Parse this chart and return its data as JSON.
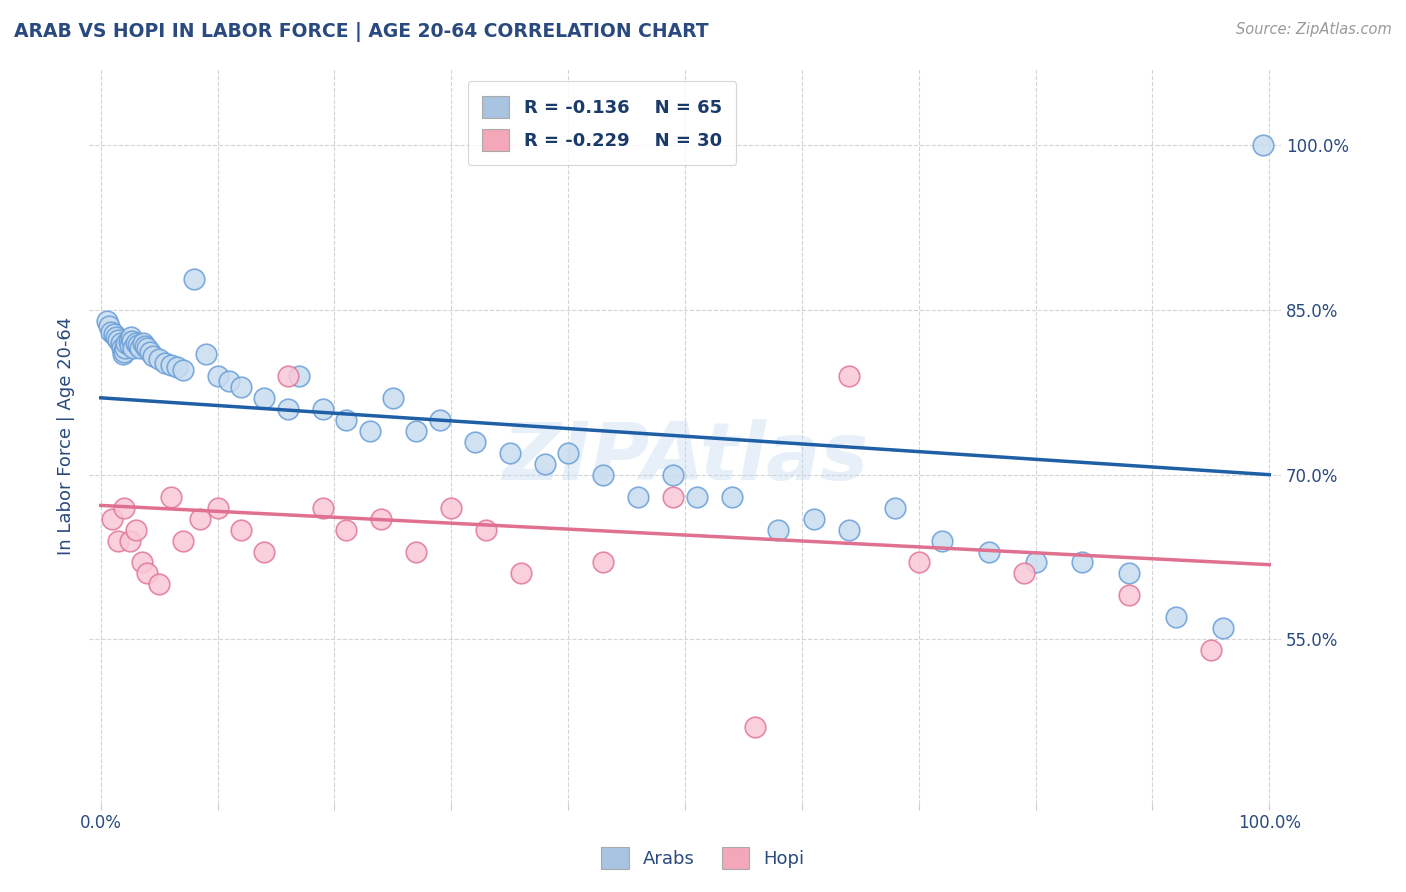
{
  "title": "ARAB VS HOPI IN LABOR FORCE | AGE 20-64 CORRELATION CHART",
  "source_text": "Source: ZipAtlas.com",
  "ylabel": "In Labor Force | Age 20-64",
  "xlim": [
    -0.01,
    1.01
  ],
  "ylim": [
    0.4,
    1.07
  ],
  "x_ticks": [
    0.0,
    0.1,
    0.2,
    0.3,
    0.4,
    0.5,
    0.6,
    0.7,
    0.8,
    0.9,
    1.0
  ],
  "x_tick_labels": [
    "0.0%",
    "",
    "",
    "",
    "",
    "",
    "",
    "",
    "",
    "",
    "100.0%"
  ],
  "y_ticks_right": [
    0.55,
    0.7,
    0.85,
    1.0
  ],
  "y_tick_labels_right": [
    "55.0%",
    "70.0%",
    "85.0%",
    "100.0%"
  ],
  "arab_R": -0.136,
  "arab_N": 65,
  "hopi_R": -0.229,
  "hopi_N": 30,
  "arab_fill_color": "#c8dcf0",
  "arab_edge_color": "#6a9fd8",
  "hopi_fill_color": "#fac8d8",
  "hopi_edge_color": "#e07898",
  "arab_legend_color": "#a8c4e0",
  "hopi_legend_color": "#f4a7b9",
  "arab_line_color": "#1f5fa6",
  "hopi_line_color": "#e07090",
  "background_color": "#ffffff",
  "grid_color": "#d4d4d4",
  "title_color": "#2a4a7f",
  "axis_label_color": "#2a4a7f",
  "legend_text_color": "#1a3a6a",
  "watermark": "ZIPAtlas",
  "arab_scatter_x": [
    0.005,
    0.007,
    0.009,
    0.011,
    0.013,
    0.015,
    0.017,
    0.018,
    0.019,
    0.02,
    0.021,
    0.022,
    0.024,
    0.025,
    0.026,
    0.027,
    0.028,
    0.03,
    0.032,
    0.034,
    0.036,
    0.038,
    0.04,
    0.042,
    0.045,
    0.05,
    0.055,
    0.06,
    0.065,
    0.07,
    0.08,
    0.09,
    0.1,
    0.11,
    0.12,
    0.14,
    0.16,
    0.17,
    0.19,
    0.21,
    0.23,
    0.25,
    0.27,
    0.29,
    0.32,
    0.35,
    0.38,
    0.4,
    0.43,
    0.46,
    0.49,
    0.51,
    0.54,
    0.58,
    0.61,
    0.64,
    0.68,
    0.72,
    0.76,
    0.8,
    0.84,
    0.88,
    0.92,
    0.96,
    0.995
  ],
  "arab_scatter_y": [
    0.84,
    0.835,
    0.83,
    0.828,
    0.825,
    0.823,
    0.82,
    0.815,
    0.81,
    0.812,
    0.815,
    0.82,
    0.822,
    0.818,
    0.825,
    0.822,
    0.815,
    0.82,
    0.818,
    0.815,
    0.82,
    0.817,
    0.815,
    0.812,
    0.808,
    0.805,
    0.802,
    0.8,
    0.798,
    0.795,
    0.878,
    0.81,
    0.79,
    0.785,
    0.78,
    0.77,
    0.76,
    0.79,
    0.76,
    0.75,
    0.74,
    0.77,
    0.74,
    0.75,
    0.73,
    0.72,
    0.71,
    0.72,
    0.7,
    0.68,
    0.7,
    0.68,
    0.68,
    0.65,
    0.66,
    0.65,
    0.67,
    0.64,
    0.63,
    0.62,
    0.62,
    0.61,
    0.57,
    0.56,
    1.0
  ],
  "hopi_scatter_x": [
    0.01,
    0.015,
    0.02,
    0.025,
    0.03,
    0.035,
    0.04,
    0.05,
    0.06,
    0.07,
    0.085,
    0.1,
    0.12,
    0.14,
    0.16,
    0.19,
    0.21,
    0.24,
    0.27,
    0.3,
    0.33,
    0.36,
    0.43,
    0.49,
    0.56,
    0.64,
    0.7,
    0.79,
    0.88,
    0.95
  ],
  "hopi_scatter_y": [
    0.66,
    0.64,
    0.67,
    0.64,
    0.65,
    0.62,
    0.61,
    0.6,
    0.68,
    0.64,
    0.66,
    0.67,
    0.65,
    0.63,
    0.79,
    0.67,
    0.65,
    0.66,
    0.63,
    0.67,
    0.65,
    0.61,
    0.62,
    0.68,
    0.47,
    0.79,
    0.62,
    0.61,
    0.59,
    0.54
  ],
  "arab_line_x0": 0.0,
  "arab_line_x1": 1.0,
  "arab_line_y0": 0.77,
  "arab_line_y1": 0.7,
  "hopi_line_x0": 0.0,
  "hopi_line_x1": 1.0,
  "hopi_line_y0": 0.672,
  "hopi_line_y1": 0.618
}
